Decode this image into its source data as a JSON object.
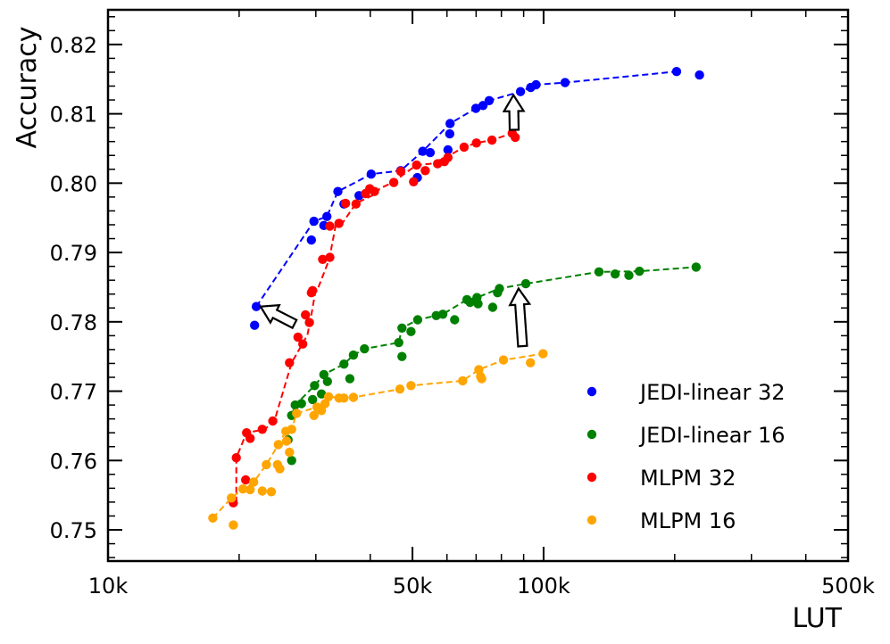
{
  "chart_data": {
    "type": "scatter",
    "title": "",
    "xlabel": "LUT",
    "ylabel": "Accuracy",
    "xscale": "log",
    "xlim": [
      10000,
      500000
    ],
    "ylim": [
      0.7455,
      0.825
    ],
    "x_ticks": [
      {
        "value": 10000,
        "label": "10k"
      },
      {
        "value": 50000,
        "label": "50k"
      },
      {
        "value": 100000,
        "label": "100k"
      },
      {
        "value": 500000,
        "label": "500k"
      }
    ],
    "y_ticks": [
      {
        "value": 0.75,
        "label": "0.75"
      },
      {
        "value": 0.76,
        "label": "0.76"
      },
      {
        "value": 0.77,
        "label": "0.77"
      },
      {
        "value": 0.78,
        "label": "0.78"
      },
      {
        "value": 0.79,
        "label": "0.79"
      },
      {
        "value": 0.8,
        "label": "0.80"
      },
      {
        "value": 0.81,
        "label": "0.81"
      },
      {
        "value": 0.82,
        "label": "0.82"
      }
    ],
    "legend_position": "lower-right",
    "series": [
      {
        "name": "JEDI-linear 32",
        "color": "#0000ff",
        "frontier": [
          [
            21900,
            0.7822
          ],
          [
            29700,
            0.7945
          ],
          [
            31800,
            0.7952
          ],
          [
            33700,
            0.7988
          ],
          [
            40200,
            0.8013
          ],
          [
            47000,
            0.8018
          ],
          [
            52800,
            0.8046
          ],
          [
            61000,
            0.8086
          ],
          [
            69900,
            0.8108
          ],
          [
            75000,
            0.8119
          ],
          [
            88500,
            0.8132
          ],
          [
            96100,
            0.8142
          ],
          [
            112000,
            0.8145
          ],
          [
            202000,
            0.8161
          ]
        ],
        "points": [
          [
            21700,
            0.7795
          ],
          [
            21900,
            0.7822
          ],
          [
            29300,
            0.7918
          ],
          [
            29700,
            0.7945
          ],
          [
            31300,
            0.7939
          ],
          [
            31800,
            0.7952
          ],
          [
            33700,
            0.7988
          ],
          [
            34800,
            0.797
          ],
          [
            37700,
            0.7982
          ],
          [
            40200,
            0.8013
          ],
          [
            47000,
            0.8018
          ],
          [
            51300,
            0.8008
          ],
          [
            52800,
            0.8046
          ],
          [
            54900,
            0.8044
          ],
          [
            60300,
            0.8048
          ],
          [
            60900,
            0.8071
          ],
          [
            61000,
            0.8086
          ],
          [
            69900,
            0.8108
          ],
          [
            72600,
            0.8112
          ],
          [
            75000,
            0.8119
          ],
          [
            88500,
            0.8132
          ],
          [
            93400,
            0.8138
          ],
          [
            96100,
            0.8142
          ],
          [
            112000,
            0.8145
          ],
          [
            202000,
            0.8161
          ],
          [
            228000,
            0.8156
          ]
        ]
      },
      {
        "name": "JEDI-linear 16",
        "color": "#008000",
        "frontier": [
          [
            26400,
            0.7665
          ],
          [
            26900,
            0.768
          ],
          [
            29800,
            0.7708
          ],
          [
            31300,
            0.7724
          ],
          [
            34800,
            0.7739
          ],
          [
            36600,
            0.7752
          ],
          [
            38800,
            0.7761
          ],
          [
            46500,
            0.777
          ],
          [
            47300,
            0.7791
          ],
          [
            51400,
            0.7803
          ],
          [
            56700,
            0.7809
          ],
          [
            58700,
            0.7811
          ],
          [
            66700,
            0.7832
          ],
          [
            70300,
            0.7835
          ],
          [
            79200,
            0.7848
          ],
          [
            91000,
            0.7855
          ],
          [
            134000,
            0.7872
          ],
          [
            166000,
            0.7873
          ],
          [
            224000,
            0.7879
          ]
        ],
        "points": [
          [
            25900,
            0.763
          ],
          [
            26400,
            0.76
          ],
          [
            26400,
            0.7665
          ],
          [
            26900,
            0.768
          ],
          [
            27800,
            0.7682
          ],
          [
            29500,
            0.7688
          ],
          [
            29800,
            0.7708
          ],
          [
            30900,
            0.7696
          ],
          [
            31300,
            0.7724
          ],
          [
            31900,
            0.7714
          ],
          [
            34800,
            0.7739
          ],
          [
            35900,
            0.7718
          ],
          [
            36600,
            0.7752
          ],
          [
            38800,
            0.7761
          ],
          [
            46500,
            0.777
          ],
          [
            47300,
            0.7791
          ],
          [
            47300,
            0.775
          ],
          [
            49600,
            0.7786
          ],
          [
            51400,
            0.7803
          ],
          [
            56700,
            0.7809
          ],
          [
            58700,
            0.7811
          ],
          [
            62500,
            0.7803
          ],
          [
            66700,
            0.7832
          ],
          [
            67800,
            0.7828
          ],
          [
            70300,
            0.7835
          ],
          [
            70700,
            0.7826
          ],
          [
            76400,
            0.7821
          ],
          [
            78400,
            0.7842
          ],
          [
            79200,
            0.7848
          ],
          [
            91000,
            0.7855
          ],
          [
            134000,
            0.7872
          ],
          [
            146000,
            0.7869
          ],
          [
            157000,
            0.7867
          ],
          [
            166000,
            0.7873
          ],
          [
            224000,
            0.7879
          ]
        ],
        "arrow_from": [
          89500,
          0.7765
        ],
        "arrow_to": [
          87600,
          0.7848
        ]
      },
      {
        "name": "MLPM 32",
        "color": "#ff0000",
        "frontier": [
          [
            19700,
            0.7539
          ],
          [
            19700,
            0.7604
          ],
          [
            20800,
            0.764
          ],
          [
            22900,
            0.7645
          ],
          [
            24100,
            0.7657
          ],
          [
            26400,
            0.7741
          ],
          [
            28700,
            0.7781
          ],
          [
            29300,
            0.781
          ],
          [
            29900,
            0.7842
          ],
          [
            30200,
            0.7845
          ],
          [
            32200,
            0.789
          ],
          [
            33300,
            0.7938
          ],
          [
            34500,
            0.7942
          ],
          [
            37100,
            0.7971
          ],
          [
            41300,
            0.7985
          ],
          [
            42000,
            0.7992
          ],
          [
            45000,
            0.8001
          ],
          [
            48800,
            0.8017
          ],
          [
            51100,
            0.8026
          ],
          [
            55000,
            0.8028
          ],
          [
            59600,
            0.8037
          ],
          [
            65700,
            0.8052
          ],
          [
            70100,
            0.8058
          ],
          [
            76100,
            0.8062
          ],
          [
            84700,
            0.8072
          ]
        ],
        "points": [
          [
            19400,
            0.7539
          ],
          [
            19700,
            0.7604
          ],
          [
            20700,
            0.7572
          ],
          [
            20800,
            0.764
          ],
          [
            21200,
            0.7632
          ],
          [
            22600,
            0.7645
          ],
          [
            23900,
            0.7657
          ],
          [
            26100,
            0.7741
          ],
          [
            27300,
            0.7778
          ],
          [
            28000,
            0.7768
          ],
          [
            28400,
            0.781
          ],
          [
            29000,
            0.7799
          ],
          [
            29300,
            0.7842
          ],
          [
            29500,
            0.7845
          ],
          [
            31100,
            0.789
          ],
          [
            32300,
            0.7893
          ],
          [
            32300,
            0.7938
          ],
          [
            33900,
            0.7942
          ],
          [
            35100,
            0.7971
          ],
          [
            37100,
            0.797
          ],
          [
            39000,
            0.7985
          ],
          [
            39900,
            0.7992
          ],
          [
            40900,
            0.7988
          ],
          [
            45300,
            0.8001
          ],
          [
            47000,
            0.8017
          ],
          [
            50300,
            0.8002
          ],
          [
            51100,
            0.8026
          ],
          [
            53500,
            0.8018
          ],
          [
            57100,
            0.8028
          ],
          [
            59200,
            0.8031
          ],
          [
            60300,
            0.8037
          ],
          [
            65700,
            0.8052
          ],
          [
            70100,
            0.8058
          ],
          [
            76100,
            0.8062
          ],
          [
            84700,
            0.8072
          ],
          [
            86100,
            0.8066
          ]
        ]
      },
      {
        "name": "MLPM 16",
        "color": "#ffa500",
        "frontier": [
          [
            17400,
            0.7517
          ],
          [
            19200,
            0.7546
          ],
          [
            20400,
            0.7559
          ],
          [
            21600,
            0.7569
          ],
          [
            23100,
            0.7594
          ],
          [
            24600,
            0.7623
          ],
          [
            25600,
            0.7642
          ],
          [
            26400,
            0.7645
          ],
          [
            27100,
            0.7668
          ],
          [
            30200,
            0.7677
          ],
          [
            31500,
            0.7682
          ],
          [
            32100,
            0.7692
          ],
          [
            34800,
            0.769
          ],
          [
            36600,
            0.7691
          ],
          [
            46800,
            0.7703
          ],
          [
            49600,
            0.7708
          ],
          [
            65200,
            0.7715
          ],
          [
            71000,
            0.7731
          ],
          [
            80900,
            0.7745
          ],
          [
            99700,
            0.7754
          ]
        ],
        "points": [
          [
            17400,
            0.7517
          ],
          [
            19200,
            0.7546
          ],
          [
            19400,
            0.7507
          ],
          [
            20400,
            0.7559
          ],
          [
            21200,
            0.7558
          ],
          [
            21600,
            0.7569
          ],
          [
            22600,
            0.7556
          ],
          [
            23100,
            0.7594
          ],
          [
            23700,
            0.7555
          ],
          [
            24500,
            0.7594
          ],
          [
            24600,
            0.7623
          ],
          [
            24800,
            0.7588
          ],
          [
            25600,
            0.7642
          ],
          [
            25700,
            0.7628
          ],
          [
            26100,
            0.7612
          ],
          [
            26400,
            0.7645
          ],
          [
            27100,
            0.7668
          ],
          [
            29700,
            0.7665
          ],
          [
            30200,
            0.7677
          ],
          [
            30900,
            0.7672
          ],
          [
            31500,
            0.7682
          ],
          [
            32100,
            0.7692
          ],
          [
            33900,
            0.769
          ],
          [
            34800,
            0.769
          ],
          [
            36600,
            0.7691
          ],
          [
            46800,
            0.7703
          ],
          [
            49600,
            0.7708
          ],
          [
            65200,
            0.7715
          ],
          [
            71000,
            0.7731
          ],
          [
            71700,
            0.7721
          ],
          [
            72100,
            0.7718
          ],
          [
            80900,
            0.7745
          ],
          [
            93300,
            0.7741
          ],
          [
            99700,
            0.7754
          ]
        ]
      }
    ],
    "arrows": [
      {
        "from_series": "MLPM 32",
        "to_series": "JEDI-linear 32",
        "from": [
          26800,
          0.7797
        ],
        "to": [
          22400,
          0.7822
        ]
      },
      {
        "from_series": "MLPM 32",
        "to_series": "JEDI-linear 32",
        "from": [
          85600,
          0.8077
        ],
        "to": [
          85300,
          0.8127
        ]
      },
      {
        "from_series": "MLPM 16",
        "to_series": "JEDI-linear 16",
        "from": [
          89500,
          0.7765
        ],
        "to": [
          87600,
          0.7848
        ]
      }
    ]
  }
}
